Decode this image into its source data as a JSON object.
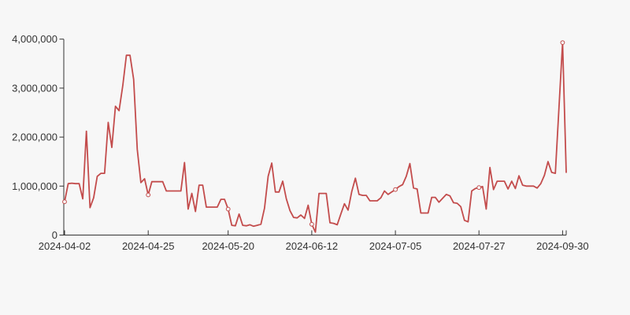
{
  "chart": {
    "background_color": "#f7f7f7",
    "line_color": "#c34c4c",
    "axis_color": "#333333",
    "label_color": "#333333",
    "marker_style": "open-circle"
  },
  "chart_data": {
    "type": "line",
    "title": "",
    "xlabel": "",
    "ylabel": "",
    "grid": false,
    "legend": false,
    "ylim": [
      0,
      4000000
    ],
    "y_ticks": [
      0,
      1000000,
      2000000,
      3000000,
      4000000
    ],
    "y_tick_labels": [
      "0",
      "1,000,000",
      "2,000,000",
      "3,000,000",
      "4,000,000"
    ],
    "x_tick_indices": [
      0,
      23,
      45,
      68,
      91,
      114,
      137
    ],
    "x_tick_labels": [
      "2024-04-02",
      "2024-04-25",
      "2024-05-20",
      "2024-06-12",
      "2024-07-05",
      "2024-07-27",
      "2024-09-30"
    ],
    "marker_indices": [
      0,
      23,
      45,
      68,
      91,
      114,
      137
    ],
    "marker_values": [
      680000,
      820000,
      530000,
      220000,
      930000,
      970000,
      3930000
    ],
    "values": [
      680000,
      1050000,
      1060000,
      1050000,
      1050000,
      740000,
      2120000,
      560000,
      760000,
      1200000,
      1260000,
      1260000,
      2300000,
      1790000,
      2630000,
      2540000,
      3050000,
      3670000,
      3670000,
      3180000,
      1750000,
      1070000,
      1150000,
      820000,
      1090000,
      1090000,
      1090000,
      1090000,
      900000,
      900000,
      900000,
      900000,
      900000,
      1480000,
      530000,
      850000,
      480000,
      1020000,
      1020000,
      570000,
      570000,
      570000,
      570000,
      730000,
      730000,
      530000,
      200000,
      190000,
      430000,
      200000,
      190000,
      210000,
      180000,
      200000,
      220000,
      550000,
      1200000,
      1470000,
      880000,
      880000,
      1100000,
      740000,
      500000,
      360000,
      350000,
      410000,
      340000,
      610000,
      220000,
      60000,
      850000,
      850000,
      850000,
      250000,
      240000,
      210000,
      430000,
      640000,
      510000,
      890000,
      1160000,
      830000,
      810000,
      810000,
      700000,
      700000,
      700000,
      760000,
      900000,
      830000,
      880000,
      930000,
      990000,
      1030000,
      1200000,
      1460000,
      960000,
      940000,
      450000,
      450000,
      450000,
      770000,
      770000,
      670000,
      750000,
      830000,
      800000,
      660000,
      650000,
      580000,
      300000,
      270000,
      900000,
      950000,
      970000,
      990000,
      530000,
      1380000,
      930000,
      1100000,
      1100000,
      1100000,
      940000,
      1100000,
      950000,
      1210000,
      1020000,
      1000000,
      1000000,
      1000000,
      960000,
      1050000,
      1220000,
      1500000,
      1280000,
      1260000,
      2600000,
      3930000,
      1280000
    ]
  }
}
